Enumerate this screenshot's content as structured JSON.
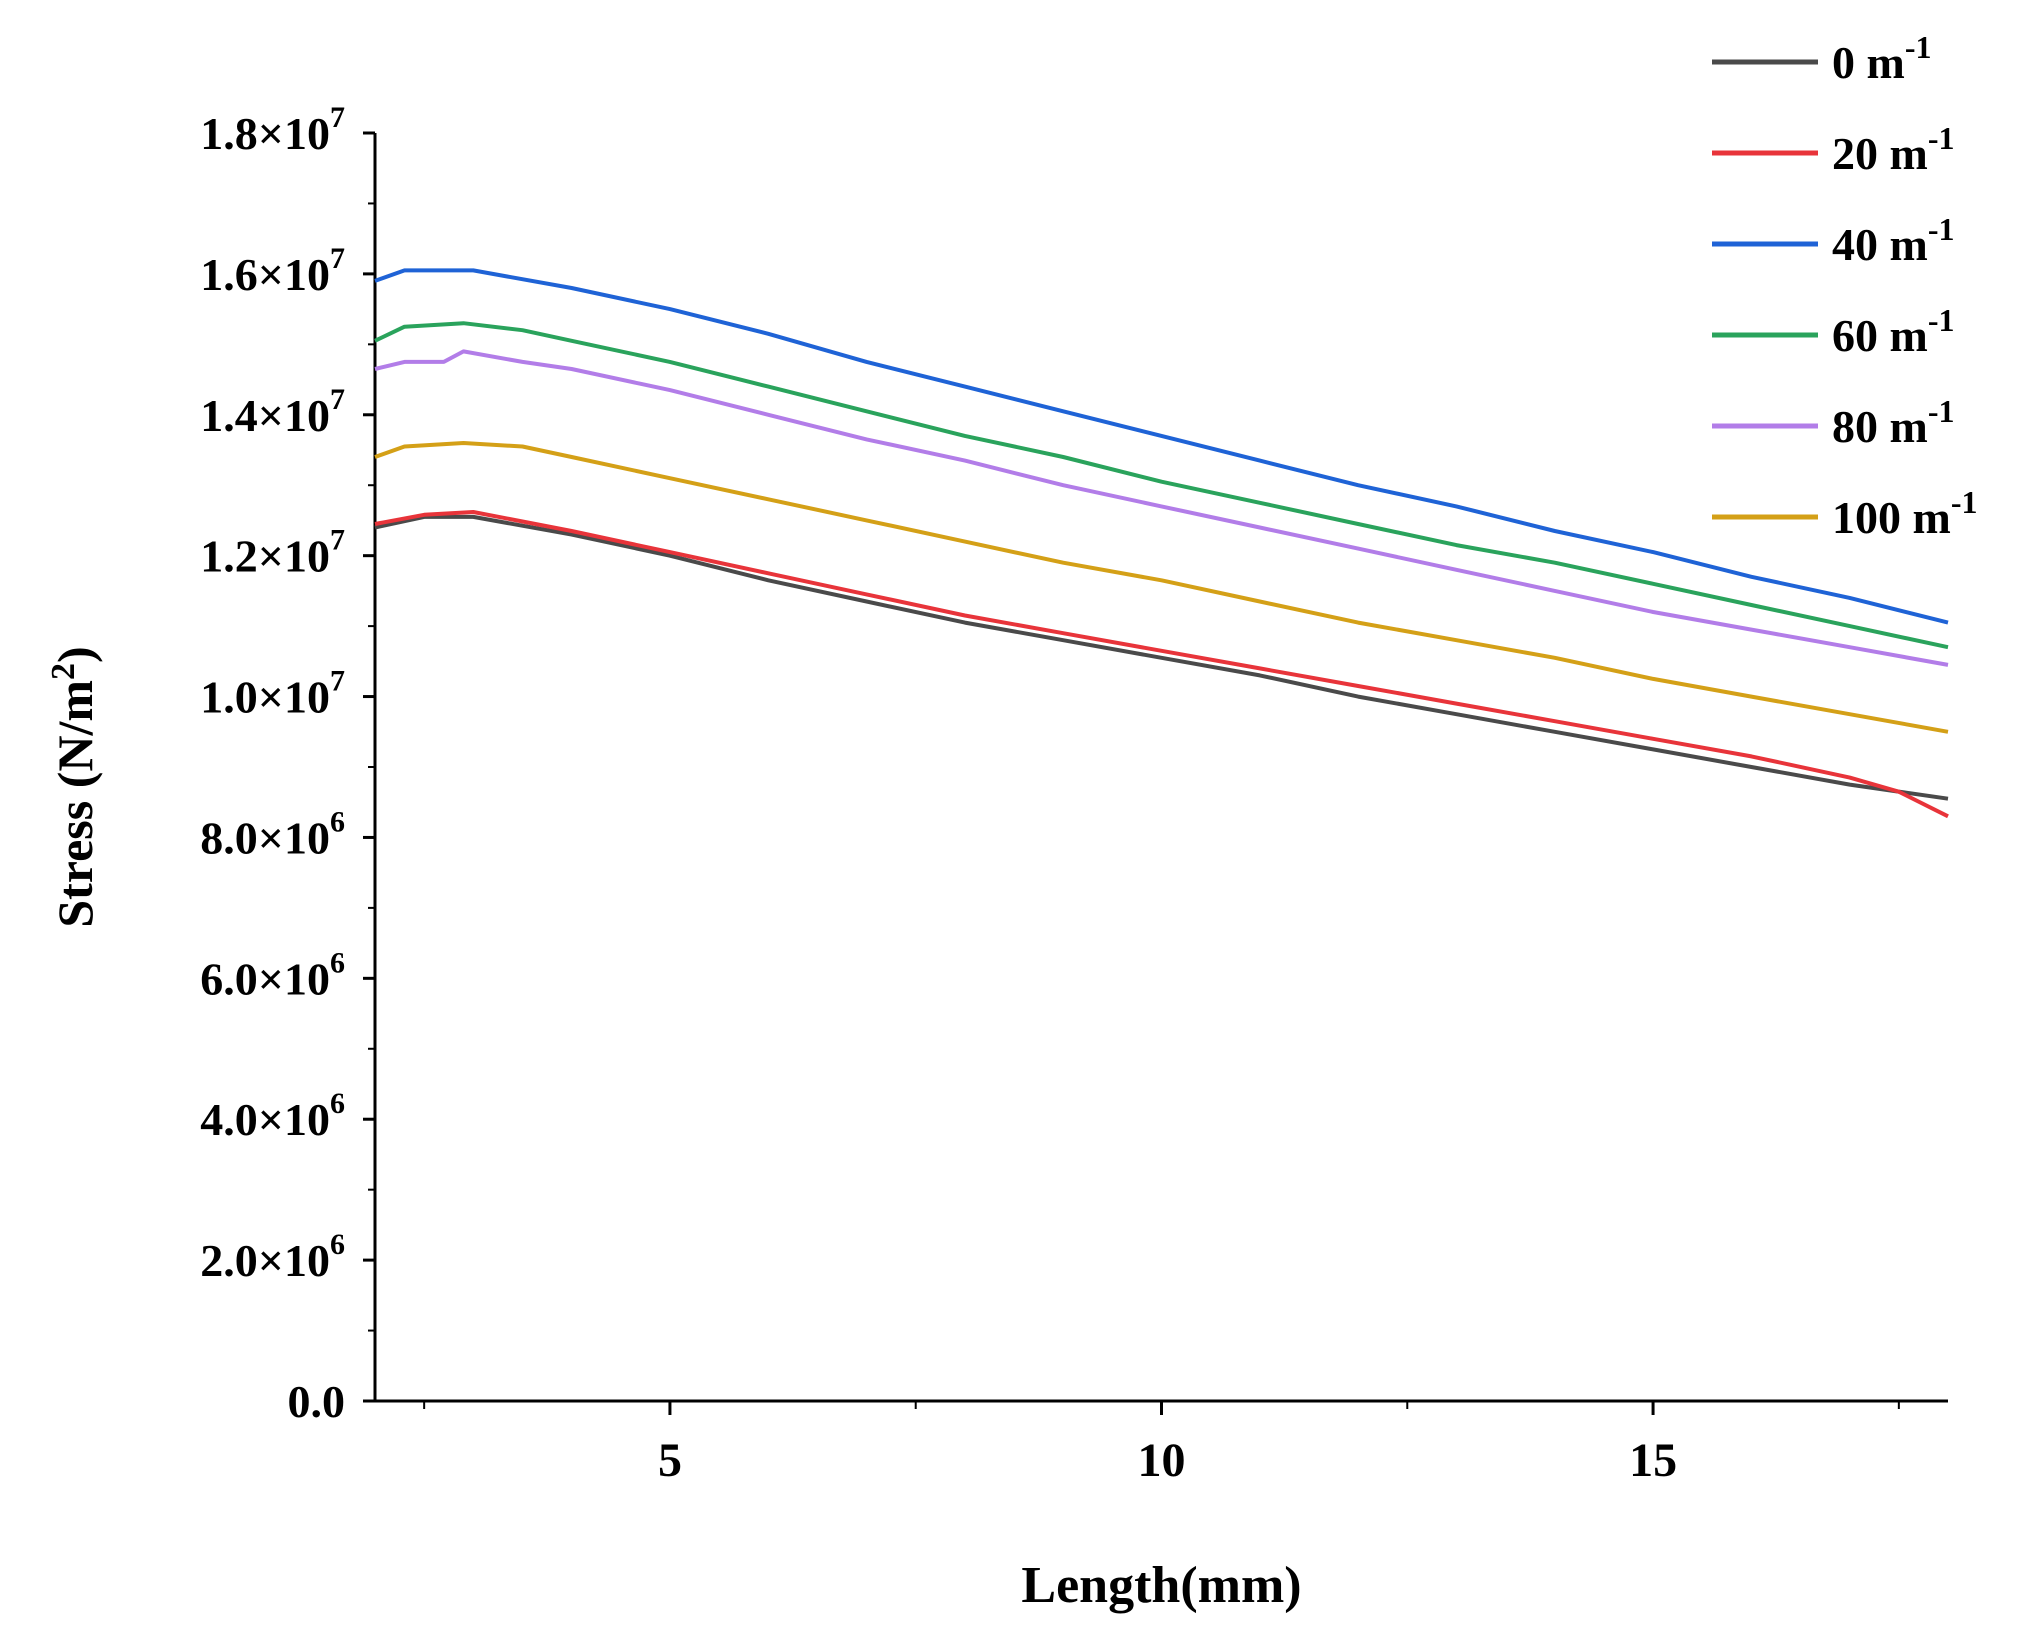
{
  "chart_data": {
    "type": "line",
    "title": "",
    "xlabel": "Length(mm)",
    "ylabel_base": "Stress (N/m",
    "ylabel_sup": "2",
    "ylabel_tail": ")",
    "xlim": [
      2,
      18
    ],
    "ylim": [
      0,
      18000000
    ],
    "xticks": [
      {
        "value": 5,
        "label": "5"
      },
      {
        "value": 10,
        "label": "10"
      },
      {
        "value": 15,
        "label": "15"
      }
    ],
    "yticks": [
      {
        "value": 0,
        "mantissa": "0.0",
        "exp": ""
      },
      {
        "value": 2000000,
        "mantissa": "2.0×10",
        "exp": "6"
      },
      {
        "value": 4000000,
        "mantissa": "4.0×10",
        "exp": "6"
      },
      {
        "value": 6000000,
        "mantissa": "6.0×10",
        "exp": "6"
      },
      {
        "value": 8000000,
        "mantissa": "8.0×10",
        "exp": "6"
      },
      {
        "value": 10000000,
        "mantissa": "1.0×10",
        "exp": "7"
      },
      {
        "value": 12000000,
        "mantissa": "1.2×10",
        "exp": "7"
      },
      {
        "value": 14000000,
        "mantissa": "1.4×10",
        "exp": "7"
      },
      {
        "value": 16000000,
        "mantissa": "1.6×10",
        "exp": "7"
      },
      {
        "value": 18000000,
        "mantissa": "1.8×10",
        "exp": "7"
      }
    ],
    "legend_position": "top-right",
    "series": [
      {
        "name": "0 m",
        "sup": "-1",
        "color": "#4a4a4a",
        "x": [
          2.0,
          2.5,
          3.0,
          4.0,
          5.0,
          6.0,
          7.0,
          8.0,
          9.0,
          10.0,
          11.0,
          12.0,
          13.0,
          14.0,
          15.0,
          16.0,
          17.0,
          18.0
        ],
        "y": [
          12400000,
          12550000,
          12550000,
          12300000,
          12000000,
          11650000,
          11350000,
          11050000,
          10800000,
          10550000,
          10300000,
          10000000,
          9750000,
          9500000,
          9250000,
          9000000,
          8750000,
          8550000
        ]
      },
      {
        "name": "20 m",
        "sup": "-1",
        "color": "#e8343a",
        "x": [
          2.0,
          2.5,
          3.0,
          4.0,
          5.0,
          6.0,
          7.0,
          8.0,
          9.0,
          10.0,
          11.0,
          12.0,
          13.0,
          14.0,
          15.0,
          16.0,
          17.0,
          17.5,
          18.0
        ],
        "y": [
          12450000,
          12580000,
          12620000,
          12350000,
          12050000,
          11750000,
          11450000,
          11150000,
          10900000,
          10650000,
          10400000,
          10150000,
          9900000,
          9650000,
          9400000,
          9150000,
          8850000,
          8650000,
          8300000
        ]
      },
      {
        "name": "40 m",
        "sup": "-1",
        "color": "#1f63d6",
        "x": [
          2.0,
          2.3,
          3.0,
          4.0,
          5.0,
          6.0,
          7.0,
          8.0,
          9.0,
          10.0,
          11.0,
          12.0,
          13.0,
          14.0,
          15.0,
          16.0,
          17.0,
          18.0
        ],
        "y": [
          15900000,
          16050000,
          16050000,
          15800000,
          15500000,
          15150000,
          14750000,
          14400000,
          14050000,
          13700000,
          13350000,
          13000000,
          12700000,
          12350000,
          12050000,
          11700000,
          11400000,
          11050000
        ]
      },
      {
        "name": "60 m",
        "sup": "-1",
        "color": "#2aa35c",
        "x": [
          2.0,
          2.3,
          2.9,
          3.5,
          4.0,
          5.0,
          6.0,
          7.0,
          8.0,
          9.0,
          10.0,
          11.0,
          12.0,
          13.0,
          14.0,
          15.0,
          16.0,
          17.0,
          18.0
        ],
        "y": [
          15050000,
          15250000,
          15300000,
          15200000,
          15050000,
          14750000,
          14400000,
          14050000,
          13700000,
          13400000,
          13050000,
          12750000,
          12450000,
          12150000,
          11900000,
          11600000,
          11300000,
          11000000,
          10700000
        ]
      },
      {
        "name": "80 m",
        "sup": "-1",
        "color": "#b27de8",
        "x": [
          2.0,
          2.3,
          2.7,
          2.9,
          3.5,
          4.0,
          5.0,
          6.0,
          7.0,
          8.0,
          9.0,
          10.0,
          11.0,
          12.0,
          13.0,
          14.0,
          15.0,
          16.0,
          17.0,
          18.0
        ],
        "y": [
          14650000,
          14750000,
          14750000,
          14900000,
          14750000,
          14650000,
          14350000,
          14000000,
          13650000,
          13350000,
          13000000,
          12700000,
          12400000,
          12100000,
          11800000,
          11500000,
          11200000,
          10950000,
          10700000,
          10450000
        ]
      },
      {
        "name": "100 m",
        "sup": "-1",
        "color": "#d4a017",
        "x": [
          2.0,
          2.3,
          2.9,
          3.5,
          4.0,
          5.0,
          6.0,
          7.0,
          8.0,
          9.0,
          10.0,
          11.0,
          12.0,
          13.0,
          14.0,
          15.0,
          16.0,
          17.0,
          18.0
        ],
        "y": [
          13400000,
          13550000,
          13600000,
          13550000,
          13400000,
          13100000,
          12800000,
          12500000,
          12200000,
          11900000,
          11650000,
          11350000,
          11050000,
          10800000,
          10550000,
          10250000,
          10000000,
          9750000,
          9500000
        ]
      }
    ]
  }
}
